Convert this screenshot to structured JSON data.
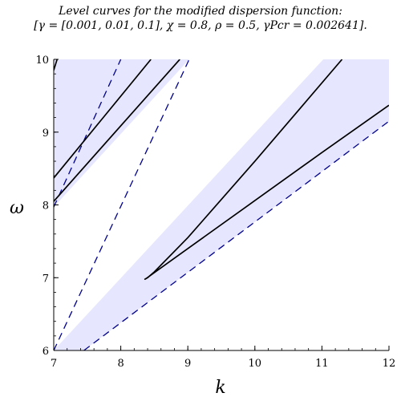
{
  "chart_data": {
    "type": "line",
    "title": "Level curves for the modified dispersion function:",
    "subtitle": "[γ = [0.001, 0.01, 0.1], χ = 0.8, ρ = 0.5, γPcr = 0.002641].",
    "xlabel": "k",
    "ylabel": "ω",
    "xlim": [
      7,
      12
    ],
    "ylim": [
      6,
      10
    ],
    "xticks": [
      "7",
      "8",
      "9",
      "10",
      "11",
      "12"
    ],
    "yticks": [
      "6",
      "7",
      "8",
      "9",
      "10"
    ],
    "grid": false,
    "colors": {
      "region_fill": "#e6e6ff",
      "dashed_boundary": "#00008b",
      "level_curve": "#000000"
    },
    "regions": [
      {
        "name": "",
        "upper": [
          [
            7.0,
            10.0
          ],
          [
            8.0,
            10.0
          ]
        ],
        "lower": [
          [
            7.0,
            7.97
          ],
          [
            9.02,
            10.0
          ]
        ]
      },
      {
        "name": "",
        "upper": [
          [
            7.0,
            6.0
          ],
          [
            11.02,
            10.0
          ],
          [
            12.0,
            10.0
          ]
        ],
        "lower": [
          [
            7.45,
            6.0
          ],
          [
            12.0,
            9.15
          ]
        ]
      }
    ],
    "series": [
      {
        "name": "",
        "style": "dashed",
        "x": [
          7.0,
          8.0
        ],
        "y": [
          7.97,
          10.0
        ]
      },
      {
        "name": "",
        "style": "dashed",
        "x": [
          7.0,
          9.02
        ],
        "y": [
          6.0,
          10.0
        ]
      },
      {
        "name": "",
        "style": "dashed",
        "x": [
          7.45,
          12.0
        ],
        "y": [
          6.0,
          9.15
        ]
      },
      {
        "name": "",
        "style": "solid",
        "x": [
          7.0,
          7.05
        ],
        "y": [
          9.85,
          10.0
        ]
      },
      {
        "name": "",
        "style": "solid",
        "x": [
          7.0,
          8.45
        ],
        "y": [
          8.37,
          10.0
        ]
      },
      {
        "name": "",
        "style": "solid",
        "x": [
          7.0,
          8.88
        ],
        "y": [
          8.05,
          10.0
        ]
      },
      {
        "name": "",
        "style": "solid",
        "x": [
          11.3,
          10.0,
          9.0,
          8.5,
          8.4,
          8.36,
          8.38,
          8.5,
          9.0,
          10.0,
          11.0,
          12.0
        ],
        "y": [
          10.0,
          8.6,
          7.55,
          7.08,
          7.0,
          6.98,
          6.99,
          7.07,
          7.4,
          8.06,
          8.72,
          9.37
        ]
      }
    ]
  }
}
